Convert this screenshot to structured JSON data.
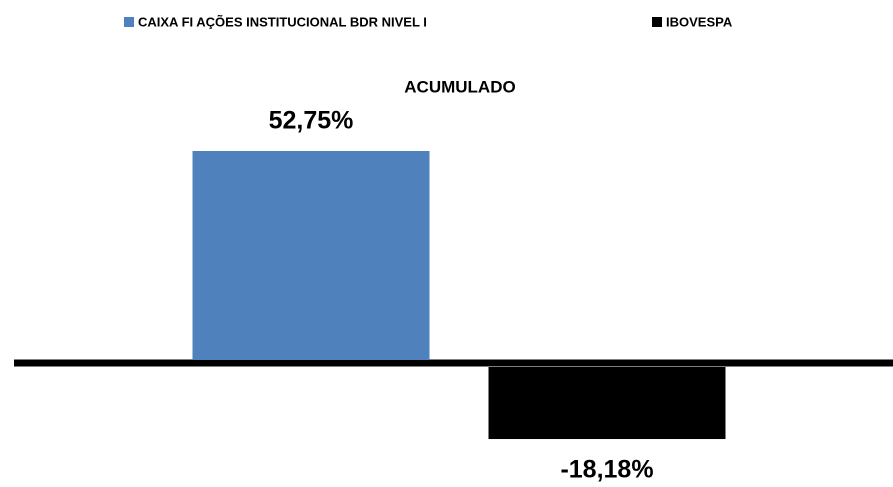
{
  "chart_data": {
    "type": "bar",
    "categories": [
      "ACUMULADO"
    ],
    "series": [
      {
        "name": "CAIXA FI AÇÕES INSTITUCIONAL BDR NIVEL I",
        "color": "#4f81bd",
        "values": [
          52.75
        ],
        "value_labels": [
          "52,75%"
        ]
      },
      {
        "name": "IBOVESPA",
        "color": "#000000",
        "values": [
          -18.18
        ],
        "value_labels": [
          "-18,18%"
        ]
      }
    ]
  }
}
